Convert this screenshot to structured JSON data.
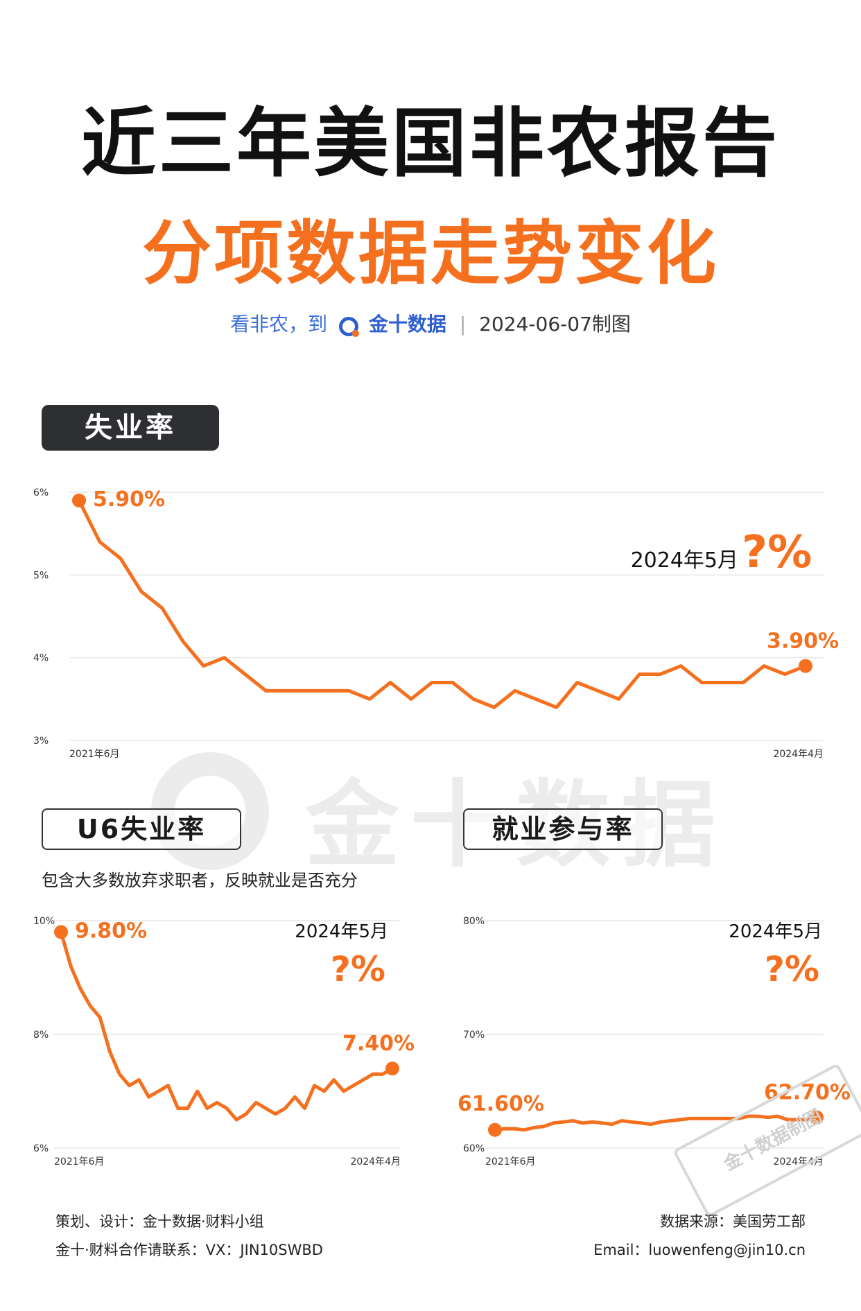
{
  "header": {
    "title": "近三年美国非农报告",
    "subtitle": "分项数据走势变化",
    "tagline_prefix": "看非农，到",
    "brand": "金十数据",
    "made_date": "2024-06-07制图"
  },
  "watermark": "金十数据",
  "sections": {
    "unemployment": {
      "label": "失业率"
    },
    "u6": {
      "label": "U6失业率",
      "note": "包含大多数放弃求职者，反映就业是否充分"
    },
    "participation": {
      "label": "就业参与率"
    }
  },
  "chart_data": [
    {
      "type": "line",
      "title": "失业率",
      "x_start_label": "2021年6月",
      "x_end_label": "2024年4月",
      "yticks": [
        "3%",
        "4%",
        "5%",
        "6%"
      ],
      "ylim": [
        3,
        6
      ],
      "values": [
        5.9,
        5.4,
        5.2,
        4.8,
        4.6,
        4.2,
        3.9,
        4.0,
        3.8,
        3.6,
        3.6,
        3.6,
        3.6,
        3.6,
        3.5,
        3.7,
        3.5,
        3.7,
        3.7,
        3.5,
        3.4,
        3.6,
        3.5,
        3.4,
        3.7,
        3.6,
        3.5,
        3.8,
        3.8,
        3.9,
        3.7,
        3.7,
        3.7,
        3.9,
        3.8,
        3.9
      ],
      "start_label": "5.90%",
      "end_label": "3.90%",
      "pending_label": "2024年5月",
      "pending_value": "?%",
      "color": "#f5701e"
    },
    {
      "type": "line",
      "title": "U6失业率",
      "x_start_label": "2021年6月",
      "x_end_label": "2024年4月",
      "yticks": [
        "6%",
        "8%",
        "10%"
      ],
      "ylim": [
        6,
        10
      ],
      "values": [
        9.8,
        9.2,
        8.8,
        8.5,
        8.3,
        7.7,
        7.3,
        7.1,
        7.2,
        6.9,
        7.0,
        7.1,
        6.7,
        6.7,
        7.0,
        6.7,
        6.8,
        6.7,
        6.5,
        6.6,
        6.8,
        6.7,
        6.6,
        6.7,
        6.9,
        6.7,
        7.1,
        7.0,
        7.2,
        7.0,
        7.1,
        7.2,
        7.3,
        7.3,
        7.4
      ],
      "start_label": "9.80%",
      "end_label": "7.40%",
      "pending_label": "2024年5月",
      "pending_value": "?%",
      "color": "#f5701e"
    },
    {
      "type": "line",
      "title": "就业参与率",
      "x_start_label": "2021年6月",
      "x_end_label": "2024年4月",
      "yticks": [
        "60%",
        "70%",
        "80%"
      ],
      "ylim": [
        60,
        80
      ],
      "values": [
        61.6,
        61.7,
        61.7,
        61.6,
        61.8,
        61.9,
        62.2,
        62.3,
        62.4,
        62.2,
        62.3,
        62.2,
        62.1,
        62.4,
        62.3,
        62.2,
        62.1,
        62.3,
        62.4,
        62.5,
        62.6,
        62.6,
        62.6,
        62.6,
        62.6,
        62.6,
        62.8,
        62.8,
        62.7,
        62.8,
        62.5,
        62.5,
        62.5,
        62.7
      ],
      "start_label": "61.60%",
      "end_label": "62.70%",
      "pending_label": "2024年5月",
      "pending_value": "?%",
      "color": "#f5701e"
    }
  ],
  "footer": {
    "credit": "策划、设计：金十数据·财料小组",
    "contact": "金十·财料合作请联系：VX：JIN10SWBD",
    "source": "数据来源：美国劳工部",
    "email": "Email：luowenfeng@jin10.cn"
  },
  "stamp": "金十数据制图"
}
